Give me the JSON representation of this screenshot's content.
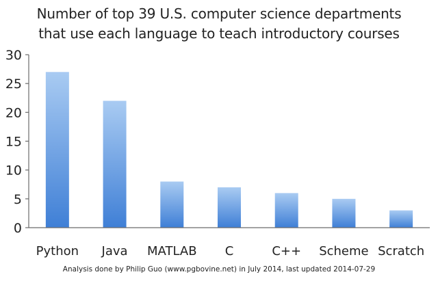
{
  "chart_data": {
    "type": "bar",
    "title_lines": [
      "Number of top 39 U.S. computer science departments",
      "that use each language to teach introductory courses"
    ],
    "categories": [
      "Python",
      "Java",
      "MATLAB",
      "C",
      "C++",
      "Scheme",
      "Scratch"
    ],
    "values": [
      27,
      22,
      8,
      7,
      6,
      5,
      3
    ],
    "ylim": [
      0,
      30
    ],
    "yticks": [
      "0",
      "5",
      "10",
      "15",
      "20",
      "25",
      "30"
    ],
    "xlabel": "",
    "ylabel": "",
    "grid": false,
    "legend": "none",
    "colors": {
      "bar_top": "#a9cbf2",
      "bar_bottom": "#3f7fd6",
      "axis": "#6b6b6b"
    },
    "footnote": "Analysis done by Philip Guo (www.pgbovine.net) in July 2014, last updated 2014-07-29"
  }
}
